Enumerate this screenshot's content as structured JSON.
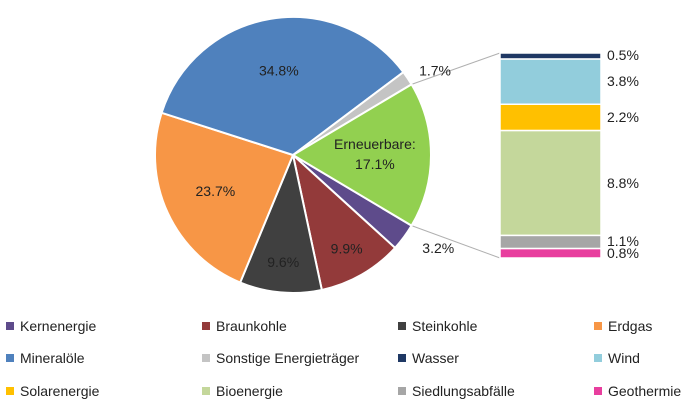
{
  "chart_data": {
    "type": "pie",
    "pie": {
      "slices": [
        {
          "name": "Kernenergie",
          "value": 3.2,
          "label": "3.2%",
          "color": "#5e4b8b"
        },
        {
          "name": "Braunkohle",
          "value": 9.9,
          "label": "9.9%",
          "color": "#933a3a"
        },
        {
          "name": "Steinkohle",
          "value": 9.6,
          "label": "9.6%",
          "color": "#404040"
        },
        {
          "name": "Erdgas",
          "value": 23.7,
          "label": "23.7%",
          "color": "#f79646"
        },
        {
          "name": "Mineralöle",
          "value": 34.8,
          "label": "34.8%",
          "color": "#4f81bd"
        },
        {
          "name": "Sonstige Energieträger",
          "value": 1.7,
          "label": "1.7%",
          "color": "#c4c4c4"
        },
        {
          "name": "Erneuerbare",
          "value": 17.1,
          "label": "Erneuerbare:",
          "label2": "17.1%",
          "color": "#92d050"
        }
      ]
    },
    "bar": {
      "segments": [
        {
          "name": "Geothermie",
          "value": 0.8,
          "label": "0.8%",
          "color": "#e83e9e"
        },
        {
          "name": "Siedlungsabfälle",
          "value": 1.1,
          "label": "1.1%",
          "color": "#a6a6a6"
        },
        {
          "name": "Bioenergie",
          "value": 8.8,
          "label": "8.8%",
          "color": "#c4d79b"
        },
        {
          "name": "Solarenergie",
          "value": 2.2,
          "label": "2.2%",
          "color": "#ffc000"
        },
        {
          "name": "Wind",
          "value": 3.8,
          "label": "3.8%",
          "color": "#92cddc"
        },
        {
          "name": "Wasser",
          "value": 0.5,
          "label": "0.5%",
          "color": "#1f3864"
        }
      ]
    },
    "legend": [
      {
        "name": "Kernenergie",
        "color": "#5e4b8b"
      },
      {
        "name": "Braunkohle",
        "color": "#933a3a"
      },
      {
        "name": "Steinkohle",
        "color": "#404040"
      },
      {
        "name": "Erdgas",
        "color": "#f79646"
      },
      {
        "name": "Mineralöle",
        "color": "#4f81bd"
      },
      {
        "name": "Sonstige Energieträger",
        "color": "#c4c4c4"
      },
      {
        "name": "Wasser",
        "color": "#1f3864"
      },
      {
        "name": "Wind",
        "color": "#92cddc"
      },
      {
        "name": "Solarenergie",
        "color": "#ffc000"
      },
      {
        "name": "Bioenergie",
        "color": "#c4d79b"
      },
      {
        "name": "Siedlungsabfälle",
        "color": "#a6a6a6"
      },
      {
        "name": "Geothermie",
        "color": "#e83e9e"
      }
    ]
  }
}
